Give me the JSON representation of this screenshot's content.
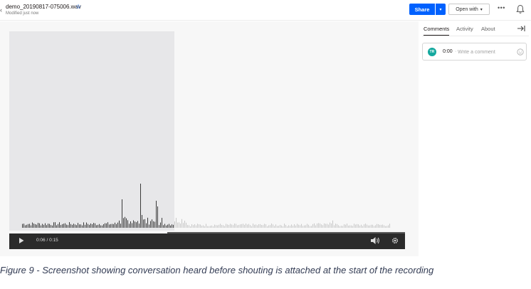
{
  "header": {
    "file_name": "demo_20190817-075006.wav",
    "modified": "Modified just now",
    "share_label": "Share",
    "open_with_label": "Open with",
    "more_label": "•••",
    "back_icon": "chevron-left-icon",
    "star_icon": "star-icon",
    "bell_icon": "bell-icon"
  },
  "player": {
    "time": "0:06 / 0:15",
    "played_fraction": 0.4
  },
  "sidebar": {
    "tabs": [
      {
        "label": "Comments",
        "active": true
      },
      {
        "label": "Activity",
        "active": false
      },
      {
        "label": "About",
        "active": false
      }
    ],
    "comment": {
      "avatar": "TR",
      "timestamp": "0:00",
      "separator": "·",
      "placeholder": "Write a comment"
    }
  },
  "caption": "Figure 9 - Screenshot showing conversation heard before shouting is attached at the start of the recording",
  "colors": {
    "accent": "#0061fe",
    "avatar": "#13a89e",
    "player_bar": "#2b2b2b",
    "played_wave": "#3a3a3a",
    "unplayed_wave": "#c8c8c8"
  }
}
